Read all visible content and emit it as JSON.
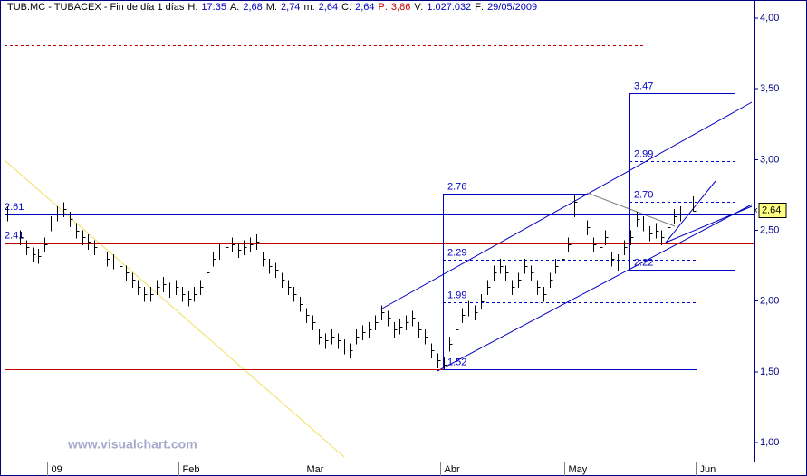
{
  "chart_data": {
    "type": "ohlc",
    "header": [
      {
        "text": "TUB.MC - TUBACEX - Fin de día 1 días",
        "color": "#000000"
      },
      {
        "text": "H:",
        "color": "#000000"
      },
      {
        "text": "17:35",
        "color": "#0000c0"
      },
      {
        "text": "A:",
        "color": "#000000"
      },
      {
        "text": "2,68",
        "color": "#0000c0"
      },
      {
        "text": "M:",
        "color": "#000000"
      },
      {
        "text": "2,74",
        "color": "#0000c0"
      },
      {
        "text": "m:",
        "color": "#000000"
      },
      {
        "text": "2,64",
        "color": "#0000c0"
      },
      {
        "text": "C:",
        "color": "#000000"
      },
      {
        "text": "2,64",
        "color": "#0000c0"
      },
      {
        "text": "P:",
        "color": "#c00000"
      },
      {
        "text": "3,86",
        "color": "#c00000"
      },
      {
        "text": "V:",
        "color": "#000000"
      },
      {
        "text": "1.027.032",
        "color": "#0000c0"
      },
      {
        "text": "F:",
        "color": "#000000"
      },
      {
        "text": "29/05/2009",
        "color": "#0000c0"
      }
    ],
    "watermark": "www.visualchart.com",
    "categories": [
      null,
      null,
      null,
      null,
      null,
      null,
      null,
      "09",
      null,
      null,
      null,
      null,
      null,
      null,
      null,
      null,
      null,
      null,
      null,
      null,
      null,
      null,
      null,
      null,
      null,
      null,
      null,
      null,
      "Feb",
      null,
      null,
      null,
      null,
      null,
      null,
      null,
      null,
      null,
      null,
      null,
      null,
      null,
      null,
      null,
      null,
      null,
      null,
      null,
      "Mar",
      null,
      null,
      null,
      null,
      null,
      null,
      null,
      null,
      null,
      null,
      null,
      null,
      null,
      null,
      null,
      null,
      null,
      null,
      null,
      null,
      null,
      "Abr",
      null,
      null,
      null,
      null,
      null,
      null,
      null,
      null,
      null,
      null,
      null,
      null,
      null,
      null,
      null,
      null,
      null,
      null,
      null,
      "May",
      null,
      null,
      null,
      null,
      null,
      null,
      null,
      null,
      null,
      null,
      null,
      null,
      null,
      null,
      null,
      null,
      null,
      null,
      null,
      null,
      "Jun"
    ],
    "high": [
      2.67,
      2.6,
      2.5,
      2.43,
      2.38,
      2.37,
      2.45,
      2.6,
      2.67,
      2.7,
      2.63,
      2.55,
      2.5,
      2.47,
      2.43,
      2.4,
      2.35,
      2.33,
      2.3,
      2.25,
      2.2,
      2.15,
      2.1,
      2.1,
      2.15,
      2.17,
      2.13,
      2.15,
      2.1,
      2.07,
      2.1,
      2.15,
      2.25,
      2.35,
      2.4,
      2.43,
      2.45,
      2.41,
      2.43,
      2.45,
      2.47,
      2.35,
      2.3,
      2.27,
      2.2,
      2.15,
      2.1,
      2.03,
      1.95,
      1.9,
      1.8,
      1.77,
      1.8,
      1.77,
      1.73,
      1.7,
      1.8,
      1.83,
      1.85,
      1.9,
      1.97,
      1.93,
      1.85,
      1.87,
      1.9,
      1.93,
      1.85,
      1.8,
      1.7,
      1.63,
      1.6,
      1.75,
      1.85,
      1.95,
      2.0,
      1.97,
      2.05,
      2.15,
      2.25,
      2.3,
      2.25,
      2.15,
      2.2,
      2.3,
      2.25,
      2.15,
      2.1,
      2.2,
      2.3,
      2.35,
      2.45,
      2.76,
      2.67,
      2.57,
      2.45,
      2.43,
      2.5,
      2.35,
      2.33,
      2.43,
      2.5,
      2.63,
      2.6,
      2.53,
      2.55,
      2.5,
      2.57,
      2.65,
      2.67,
      2.73,
      2.74,
      null
    ],
    "low": [
      2.57,
      2.5,
      2.4,
      2.33,
      2.28,
      2.27,
      2.35,
      2.5,
      2.57,
      2.6,
      2.53,
      2.45,
      2.4,
      2.37,
      2.33,
      2.3,
      2.25,
      2.23,
      2.2,
      2.15,
      2.1,
      2.05,
      2.0,
      2.0,
      2.05,
      2.07,
      2.03,
      2.05,
      2.0,
      1.97,
      2.0,
      2.05,
      2.15,
      2.25,
      2.3,
      2.33,
      2.35,
      2.31,
      2.33,
      2.35,
      2.37,
      2.25,
      2.2,
      2.17,
      2.1,
      2.05,
      2.0,
      1.93,
      1.85,
      1.8,
      1.7,
      1.67,
      1.7,
      1.67,
      1.63,
      1.6,
      1.7,
      1.73,
      1.75,
      1.8,
      1.87,
      1.83,
      1.75,
      1.77,
      1.8,
      1.83,
      1.75,
      1.7,
      1.6,
      1.53,
      1.52,
      1.65,
      1.75,
      1.85,
      1.9,
      1.87,
      1.95,
      2.05,
      2.15,
      2.2,
      2.15,
      2.05,
      2.1,
      2.2,
      2.15,
      2.05,
      2.0,
      2.1,
      2.2,
      2.25,
      2.35,
      2.6,
      2.57,
      2.47,
      2.35,
      2.33,
      2.4,
      2.25,
      2.22,
      2.33,
      2.4,
      2.53,
      2.5,
      2.43,
      2.45,
      2.4,
      2.47,
      2.55,
      2.57,
      2.63,
      2.64,
      null
    ],
    "close": [
      2.62,
      2.55,
      2.45,
      2.38,
      2.33,
      2.32,
      2.4,
      2.55,
      2.62,
      2.65,
      2.58,
      2.5,
      2.45,
      2.42,
      2.38,
      2.35,
      2.3,
      2.28,
      2.25,
      2.2,
      2.15,
      2.1,
      2.05,
      2.05,
      2.1,
      2.12,
      2.08,
      2.1,
      2.05,
      2.02,
      2.05,
      2.1,
      2.2,
      2.3,
      2.35,
      2.38,
      2.4,
      2.36,
      2.38,
      2.4,
      2.42,
      2.3,
      2.25,
      2.22,
      2.15,
      2.1,
      2.05,
      1.98,
      1.9,
      1.85,
      1.75,
      1.72,
      1.75,
      1.72,
      1.68,
      1.65,
      1.75,
      1.78,
      1.8,
      1.85,
      1.92,
      1.88,
      1.8,
      1.82,
      1.85,
      1.88,
      1.8,
      1.75,
      1.65,
      1.58,
      1.55,
      1.7,
      1.8,
      1.9,
      1.95,
      1.92,
      2.0,
      2.1,
      2.2,
      2.25,
      2.2,
      2.1,
      2.15,
      2.25,
      2.2,
      2.1,
      2.05,
      2.15,
      2.25,
      2.3,
      2.4,
      2.7,
      2.62,
      2.52,
      2.4,
      2.38,
      2.45,
      2.3,
      2.28,
      2.38,
      2.45,
      2.58,
      2.55,
      2.48,
      2.5,
      2.45,
      2.52,
      2.6,
      2.62,
      2.68,
      2.64,
      null
    ],
    "color": "#000000",
    "ylim": [
      0.866,
      4.128
    ],
    "yticks": [
      {
        "value": 4,
        "label": "4,00"
      },
      {
        "value": 3.5,
        "label": "3,50"
      },
      {
        "value": 3,
        "label": "3,00"
      },
      {
        "value": 2.5,
        "label": "2,50"
      },
      {
        "value": 2,
        "label": "2,00"
      },
      {
        "value": 1.5,
        "label": "1,50"
      },
      {
        "value": 1,
        "label": "1,00"
      }
    ],
    "last": {
      "value": 2.64,
      "label": "2,64"
    },
    "hlines": [
      {
        "value": 2.61,
        "color": "#0000c0"
      },
      {
        "value": 2.41,
        "color": "#c00000"
      },
      {
        "value": 1.52,
        "color": "#c00000"
      },
      {
        "value": 3.81,
        "color": "#c00000",
        "dashed": true
      }
    ],
    "left_labels": [
      2.61,
      2.41
    ],
    "fibs": [
      {
        "levels": [
          2.76,
          2.29,
          1.99,
          1.52
        ]
      },
      {
        "levels": [
          3.47,
          2.99,
          {
            "value": 2.7,
            "label": "2.70"
          },
          2.22
        ]
      }
    ]
  }
}
